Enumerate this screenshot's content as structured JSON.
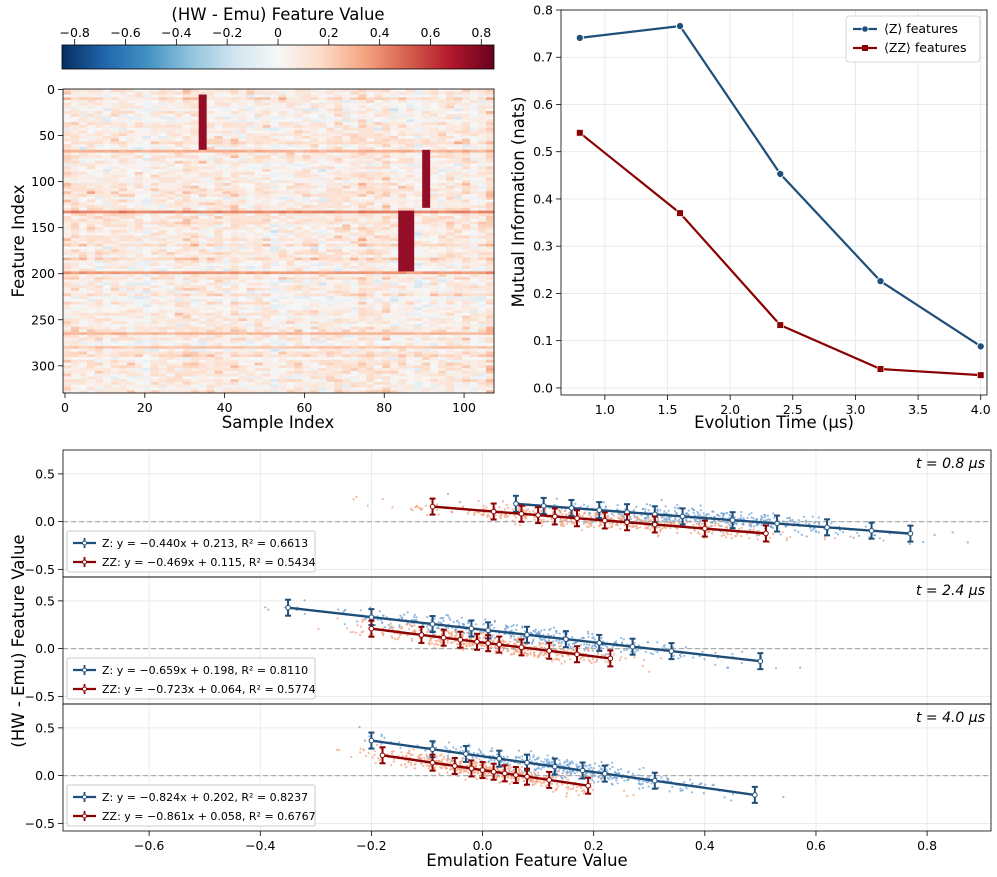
{
  "colors": {
    "z": "#1f4e79",
    "zz": "#8b0000",
    "z_scatter": "#6fa3d6",
    "zz_scatter": "#f4a582",
    "grid": "#e6e6e6",
    "zero_line": "#aaaaaa"
  },
  "chart_data": [
    {
      "id": "heatmap",
      "type": "heatmap",
      "title": "",
      "colorbar_label": "(HW - Emu) Feature Value",
      "colorbar_range": [
        -0.85,
        0.85
      ],
      "colorbar_ticks": [
        -0.8,
        -0.6,
        -0.4,
        -0.2,
        0.0,
        0.2,
        0.4,
        0.6,
        0.8
      ],
      "colorbar_tick_labels": [
        "−0.8",
        "−0.6",
        "−0.4",
        "−0.2",
        "0",
        "0.2",
        "0.4",
        "0.6",
        "0.8"
      ],
      "xlabel": "Sample Index",
      "ylabel": "Feature Index",
      "n_samples": 108,
      "n_features": 330,
      "xticks": [
        0,
        20,
        40,
        60,
        80,
        100
      ],
      "yticks": [
        0,
        50,
        100,
        150,
        200,
        250,
        300
      ],
      "row_bands": [
        {
          "feature": 67,
          "value": 0.4
        },
        {
          "feature": 133,
          "value": 0.55
        },
        {
          "feature": 200,
          "value": 0.5
        },
        {
          "feature": 265,
          "value": 0.35
        },
        {
          "feature": 280,
          "value": 0.3
        }
      ],
      "column_streaks": [
        {
          "sample": 35,
          "from": 5,
          "to": 65,
          "value": 0.75
        },
        {
          "sample": 86,
          "from": 133,
          "to": 197,
          "value": 0.75
        },
        {
          "sample": 91,
          "from": 65,
          "to": 128,
          "value": 0.75
        }
      ]
    },
    {
      "id": "mi-line",
      "type": "line",
      "title": "",
      "xlabel": "Evolution Time (μs)",
      "ylabel": "Mutual Information (nats)",
      "xlim": [
        0.65,
        4.05
      ],
      "ylim": [
        -0.015,
        0.8
      ],
      "xticks": [
        1.0,
        1.5,
        2.0,
        2.5,
        3.0,
        3.5,
        4.0
      ],
      "xtick_labels": [
        "1.0",
        "1.5",
        "2.0",
        "2.5",
        "3.0",
        "3.5",
        "4.0"
      ],
      "yticks": [
        0.0,
        0.1,
        0.2,
        0.3,
        0.4,
        0.5,
        0.6,
        0.7,
        0.8
      ],
      "ytick_labels": [
        "0.0",
        "0.1",
        "0.2",
        "0.3",
        "0.4",
        "0.5",
        "0.6",
        "0.7",
        "0.8"
      ],
      "x": [
        0.8,
        1.6,
        2.4,
        3.2,
        4.0
      ],
      "legend_position": "top-right",
      "series": [
        {
          "name": "⟨Z⟩ features",
          "marker": "circle",
          "values": [
            0.741,
            0.766,
            0.453,
            0.226,
            0.088
          ]
        },
        {
          "name": "⟨ZZ⟩ features",
          "marker": "square",
          "values": [
            0.54,
            0.37,
            0.133,
            0.04,
            0.027
          ]
        }
      ]
    },
    {
      "id": "scatter-panels",
      "type": "scatter",
      "xlabel": "Emulation Feature Value",
      "ylabel": "(HW - Emu) Feature Value",
      "xlim": [
        -0.755,
        0.915
      ],
      "xticks": [
        -0.6,
        -0.4,
        -0.2,
        0.0,
        0.2,
        0.4,
        0.6,
        0.8
      ],
      "xtick_labels": [
        "−0.6",
        "−0.4",
        "−0.2",
        "0.0",
        "0.2",
        "0.4",
        "0.6",
        "0.8"
      ],
      "ylim": [
        -0.58,
        0.75
      ],
      "yticks": [
        -0.5,
        0.0,
        0.5
      ],
      "ytick_labels": [
        "−0.5",
        "0.0",
        "0.5"
      ],
      "panels": [
        {
          "time_label": "t = 0.8 μs",
          "z_fit": {
            "slope": -0.44,
            "intercept": 0.213,
            "r2": 0.6613,
            "x_range": [
              0.06,
              0.77
            ],
            "bins_x": [
              0.06,
              0.11,
              0.16,
              0.21,
              0.26,
              0.31,
              0.36,
              0.45,
              0.53,
              0.62,
              0.7,
              0.77
            ]
          },
          "zz_fit": {
            "slope": -0.469,
            "intercept": 0.115,
            "r2": 0.5434,
            "x_range": [
              -0.09,
              0.51
            ],
            "bins_x": [
              -0.09,
              0.02,
              0.07,
              0.1,
              0.13,
              0.17,
              0.22,
              0.26,
              0.31,
              0.4,
              0.51
            ]
          },
          "legend": [
            "Z: y = −0.440x + 0.213, R² = 0.6613",
            "ZZ: y = −0.469x + 0.115, R² = 0.5434"
          ]
        },
        {
          "time_label": "t = 2.4 μs",
          "z_fit": {
            "slope": -0.659,
            "intercept": 0.198,
            "r2": 0.811,
            "x_range": [
              -0.35,
              0.5
            ],
            "bins_x": [
              -0.35,
              -0.2,
              -0.09,
              -0.02,
              0.01,
              0.08,
              0.15,
              0.21,
              0.27,
              0.34,
              0.5
            ]
          },
          "zz_fit": {
            "slope": -0.723,
            "intercept": 0.064,
            "r2": 0.5774,
            "x_range": [
              -0.2,
              0.23
            ],
            "bins_x": [
              -0.2,
              -0.11,
              -0.07,
              -0.04,
              -0.01,
              0.01,
              0.03,
              0.07,
              0.12,
              0.17,
              0.23
            ]
          },
          "legend": [
            "Z: y = −0.659x + 0.198, R² = 0.8110",
            "ZZ: y = −0.723x + 0.064, R² = 0.5774"
          ]
        },
        {
          "time_label": "t = 4.0 μs",
          "z_fit": {
            "slope": -0.824,
            "intercept": 0.202,
            "r2": 0.8237,
            "x_range": [
              -0.2,
              0.49
            ],
            "bins_x": [
              -0.2,
              -0.09,
              -0.03,
              0.03,
              0.08,
              0.13,
              0.18,
              0.22,
              0.31,
              0.49
            ]
          },
          "zz_fit": {
            "slope": -0.861,
            "intercept": 0.058,
            "r2": 0.6767,
            "x_range": [
              -0.18,
              0.19
            ],
            "bins_x": [
              -0.18,
              -0.09,
              -0.05,
              -0.02,
              0.0,
              0.02,
              0.04,
              0.06,
              0.08,
              0.12,
              0.19
            ]
          },
          "legend": [
            "Z: y = −0.824x + 0.202, R² = 0.8237",
            "ZZ: y = −0.861x + 0.058, R² = 0.6767"
          ]
        }
      ]
    }
  ]
}
